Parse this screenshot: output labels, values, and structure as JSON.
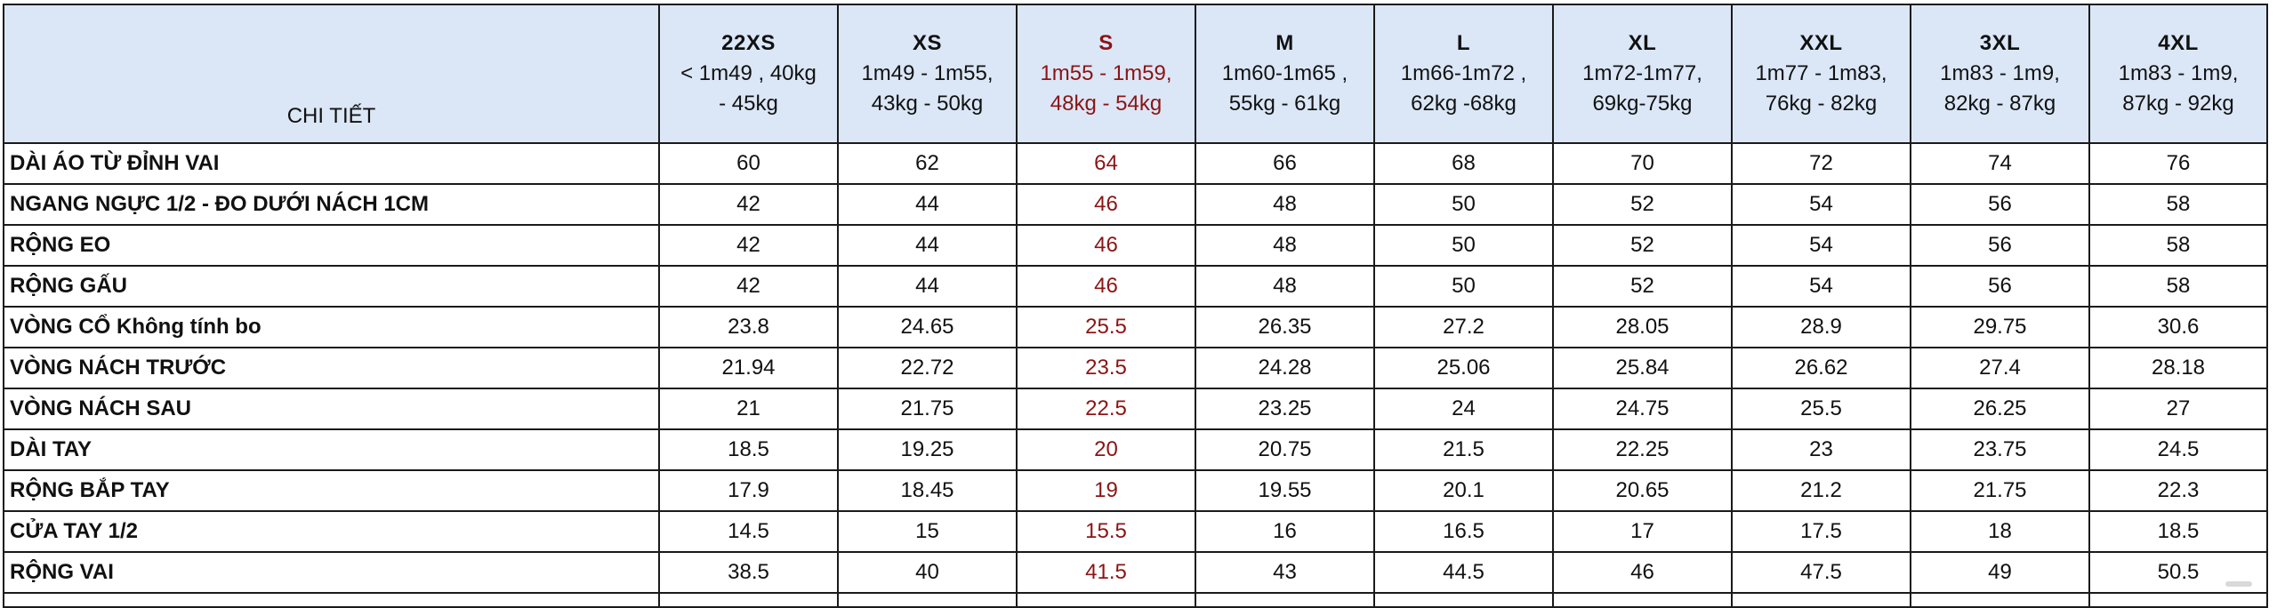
{
  "table": {
    "label_header": "CHI TIẾT",
    "highlight_color": "#8b1414",
    "header_bg": "#dbe7f7",
    "sizes": [
      {
        "name": "22XS",
        "desc": "< 1m49 , 40kg\n- 45kg",
        "highlight": false
      },
      {
        "name": "XS",
        "desc": "1m49 - 1m55,\n43kg - 50kg",
        "highlight": false
      },
      {
        "name": "S",
        "desc": "1m55 - 1m59,\n48kg - 54kg",
        "highlight": true
      },
      {
        "name": "M",
        "desc": "1m60-1m65 ,\n55kg - 61kg",
        "highlight": false
      },
      {
        "name": "L",
        "desc": "1m66-1m72 ,\n62kg -68kg",
        "highlight": false
      },
      {
        "name": "XL",
        "desc": "1m72-1m77,\n69kg-75kg",
        "highlight": false
      },
      {
        "name": "XXL",
        "desc": "1m77 - 1m83,\n76kg - 82kg",
        "highlight": false
      },
      {
        "name": "3XL",
        "desc": "1m83 - 1m9,\n82kg - 87kg",
        "highlight": false
      },
      {
        "name": "4XL",
        "desc": "1m83 - 1m9,\n87kg - 92kg",
        "highlight": false
      }
    ],
    "rows": [
      {
        "label": "DÀI ÁO TỪ ĐỈNH VAI",
        "values": [
          "60",
          "62",
          "64",
          "66",
          "68",
          "70",
          "72",
          "74",
          "76"
        ]
      },
      {
        "label": "NGANG NGỰC 1/2 - ĐO DƯỚI NÁCH 1CM",
        "values": [
          "42",
          "44",
          "46",
          "48",
          "50",
          "52",
          "54",
          "56",
          "58"
        ]
      },
      {
        "label": "RỘNG EO",
        "values": [
          "42",
          "44",
          "46",
          "48",
          "50",
          "52",
          "54",
          "56",
          "58"
        ]
      },
      {
        "label": "RỘNG GẤU",
        "values": [
          "42",
          "44",
          "46",
          "48",
          "50",
          "52",
          "54",
          "56",
          "58"
        ]
      },
      {
        "label": "VÒNG CỔ Không tính bo",
        "values": [
          "23.8",
          "24.65",
          "25.5",
          "26.35",
          "27.2",
          "28.05",
          "28.9",
          "29.75",
          "30.6"
        ]
      },
      {
        "label": "VÒNG NÁCH TRƯỚC",
        "values": [
          "21.94",
          "22.72",
          "23.5",
          "24.28",
          "25.06",
          "25.84",
          "26.62",
          "27.4",
          "28.18"
        ]
      },
      {
        "label": "VÒNG NÁCH SAU",
        "values": [
          "21",
          "21.75",
          "22.5",
          "23.25",
          "24",
          "24.75",
          "25.5",
          "26.25",
          "27"
        ]
      },
      {
        "label": "DÀI TAY",
        "values": [
          "18.5",
          "19.25",
          "20",
          "20.75",
          "21.5",
          "22.25",
          "23",
          "23.75",
          "24.5"
        ]
      },
      {
        "label": "RỘNG BẮP TAY",
        "values": [
          "17.9",
          "18.45",
          "19",
          "19.55",
          "20.1",
          "20.65",
          "21.2",
          "21.75",
          "22.3"
        ]
      },
      {
        "label": "CỬA TAY 1/2",
        "values": [
          "14.5",
          "15",
          "15.5",
          "16",
          "16.5",
          "17",
          "17.5",
          "18",
          "18.5"
        ]
      },
      {
        "label": "RỘNG VAI",
        "values": [
          "38.5",
          "40",
          "41.5",
          "43",
          "44.5",
          "46",
          "47.5",
          "49",
          "50.5"
        ]
      }
    ]
  }
}
